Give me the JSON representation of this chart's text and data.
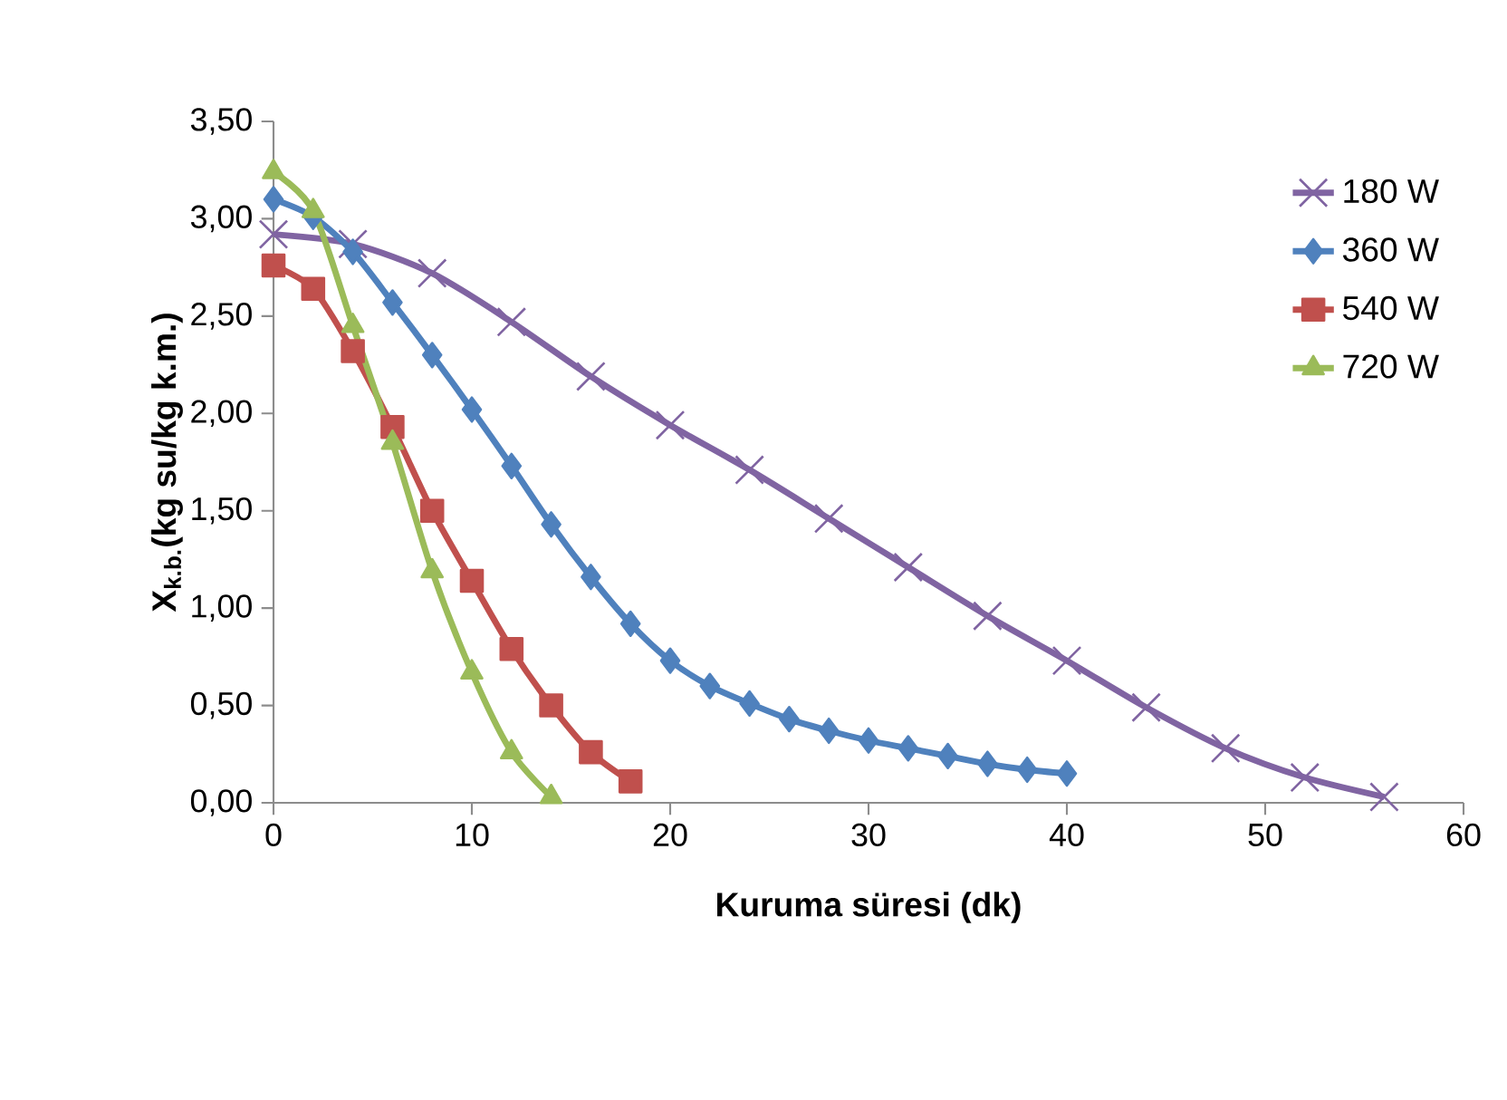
{
  "chart_data": {
    "type": "line",
    "xlabel": "Kuruma süresi (dk)",
    "ylabel": "X$_{k.b.}$(kg su/kg k.m.)",
    "xlim": [
      0,
      60
    ],
    "xticks": [
      0,
      10,
      20,
      30,
      40,
      50,
      60
    ],
    "ylim": [
      0,
      3.5
    ],
    "yticks": [
      {
        "value": 0,
        "label": "0,00"
      },
      {
        "value": 0.5,
        "label": "0,50"
      },
      {
        "value": 1,
        "label": "1,00"
      },
      {
        "value": 1.5,
        "label": "1,50"
      },
      {
        "value": 2,
        "label": "2,00"
      },
      {
        "value": 2.5,
        "label": "2,50"
      },
      {
        "value": 3,
        "label": "3,00"
      },
      {
        "value": 3.5,
        "label": "3,50"
      }
    ],
    "legend": "top right",
    "grid": false,
    "series": [
      {
        "name": "180 W",
        "color": "#8064a2",
        "marker": "cross",
        "x": [
          0,
          4,
          8,
          12,
          16,
          20,
          24,
          28,
          32,
          36,
          40,
          44,
          48,
          52,
          56
        ],
        "values": [
          2.92,
          2.87,
          2.72,
          2.47,
          2.19,
          1.94,
          1.71,
          1.46,
          1.21,
          0.96,
          0.73,
          0.49,
          0.28,
          0.13,
          0.03
        ]
      },
      {
        "name": "360 W",
        "color": "#4f81bd",
        "marker": "diamond",
        "x": [
          0,
          2,
          4,
          6,
          8,
          10,
          12,
          14,
          16,
          18,
          20,
          22,
          24,
          26,
          28,
          30,
          32,
          34,
          36,
          38,
          40
        ],
        "values": [
          3.1,
          3.01,
          2.83,
          2.57,
          2.3,
          2.02,
          1.73,
          1.43,
          1.16,
          0.92,
          0.73,
          0.6,
          0.51,
          0.43,
          0.37,
          0.32,
          0.28,
          0.24,
          0.2,
          0.17,
          0.15
        ]
      },
      {
        "name": "540 W",
        "color": "#c0504d",
        "marker": "square",
        "x": [
          0,
          2,
          4,
          6,
          8,
          10,
          12,
          14,
          16,
          18
        ],
        "values": [
          2.76,
          2.64,
          2.32,
          1.93,
          1.5,
          1.14,
          0.79,
          0.5,
          0.26,
          0.11
        ]
      },
      {
        "name": "720 W",
        "color": "#9bbb59",
        "marker": "triangle",
        "x": [
          0,
          2,
          4,
          6,
          8,
          10,
          12,
          14
        ],
        "values": [
          3.24,
          3.04,
          2.45,
          1.85,
          1.19,
          0.67,
          0.26,
          0.03
        ]
      }
    ]
  }
}
